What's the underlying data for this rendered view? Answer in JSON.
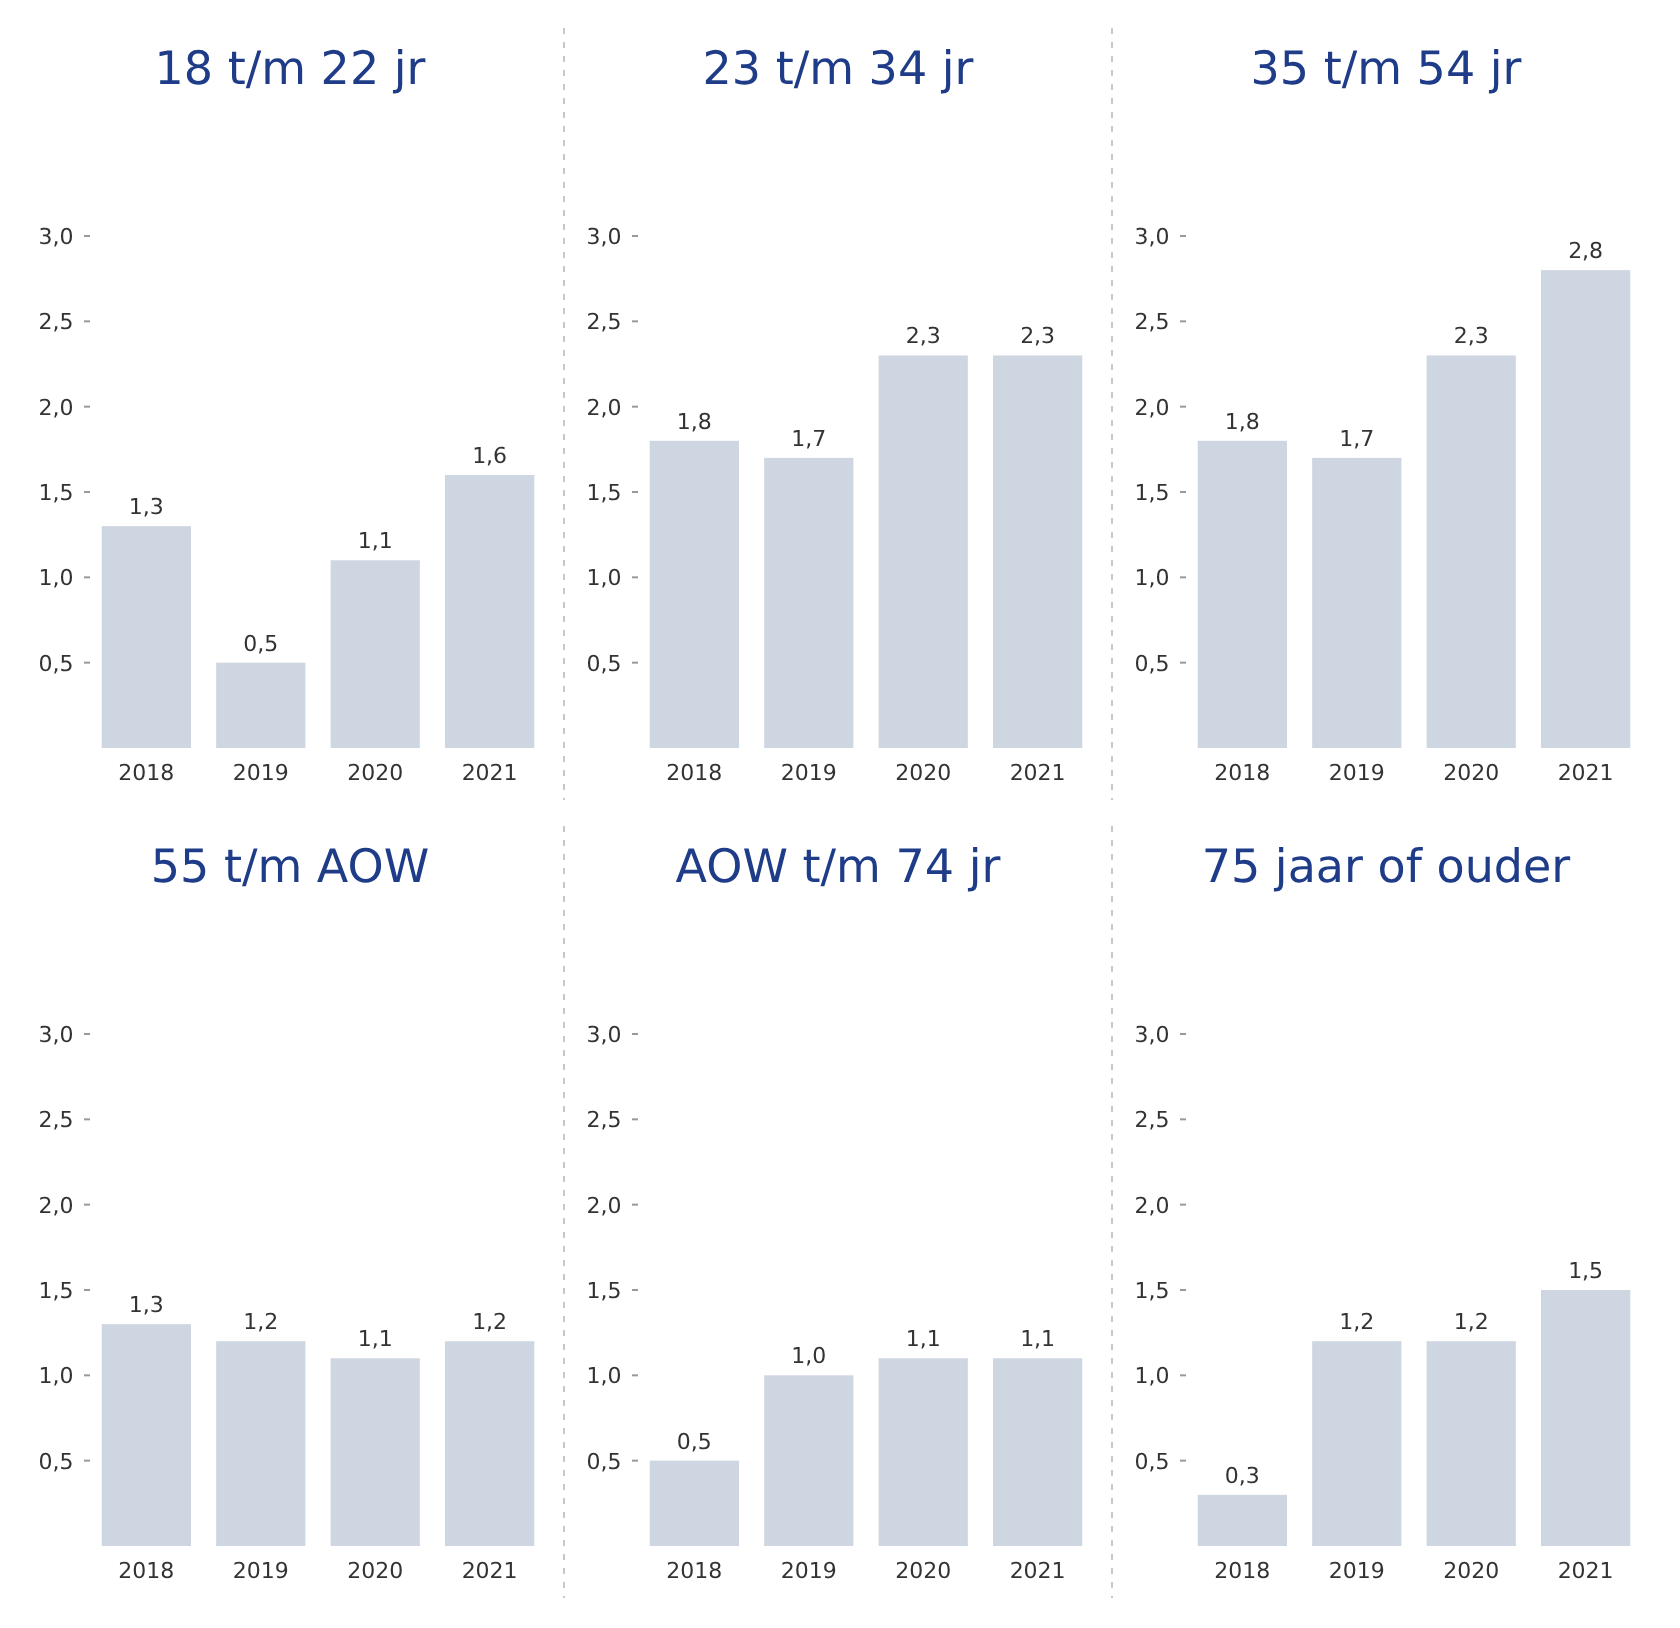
{
  "chart_data": [
    {
      "type": "bar",
      "title": "18 t/m 22 jr",
      "categories": [
        "2018",
        "2019",
        "2020",
        "2021"
      ],
      "values": [
        1.3,
        0.5,
        1.1,
        1.6
      ],
      "color": "#ced6e1",
      "ylim": [
        0,
        3.0
      ],
      "yticks": [
        {
          "value": 0.5,
          "label": "0,5"
        },
        {
          "value": 1.0,
          "label": "1,0"
        },
        {
          "value": 1.5,
          "label": "1,5"
        },
        {
          "value": 2.0,
          "label": "2,0"
        },
        {
          "value": 2.5,
          "label": "2,5"
        },
        {
          "value": 3.0,
          "label": "3,0"
        }
      ],
      "value_labels": [
        "1,3",
        "0,5",
        "1,1",
        "1,6"
      ]
    },
    {
      "type": "bar",
      "title": "23 t/m 34 jr",
      "categories": [
        "2018",
        "2019",
        "2020",
        "2021"
      ],
      "values": [
        1.8,
        1.7,
        2.3,
        2.3
      ],
      "color": "#ced6e1",
      "ylim": [
        0,
        3.0
      ],
      "yticks": [
        {
          "value": 0.5,
          "label": "0,5"
        },
        {
          "value": 1.0,
          "label": "1,0"
        },
        {
          "value": 1.5,
          "label": "1,5"
        },
        {
          "value": 2.0,
          "label": "2,0"
        },
        {
          "value": 2.5,
          "label": "2,5"
        },
        {
          "value": 3.0,
          "label": "3,0"
        }
      ],
      "value_labels": [
        "1,8",
        "1,7",
        "2,3",
        "2,3"
      ]
    },
    {
      "type": "bar",
      "title": "35 t/m 54 jr",
      "categories": [
        "2018",
        "2019",
        "2020",
        "2021"
      ],
      "values": [
        1.8,
        1.7,
        2.3,
        2.8
      ],
      "color": "#ced6e1",
      "ylim": [
        0,
        3.0
      ],
      "yticks": [
        {
          "value": 0.5,
          "label": "0,5"
        },
        {
          "value": 1.0,
          "label": "1,0"
        },
        {
          "value": 1.5,
          "label": "1,5"
        },
        {
          "value": 2.0,
          "label": "2,0"
        },
        {
          "value": 2.5,
          "label": "2,5"
        },
        {
          "value": 3.0,
          "label": "3,0"
        }
      ],
      "value_labels": [
        "1,8",
        "1,7",
        "2,3",
        "2,8"
      ]
    },
    {
      "type": "bar",
      "title": "55 t/m AOW",
      "categories": [
        "2018",
        "2019",
        "2020",
        "2021"
      ],
      "values": [
        1.3,
        1.2,
        1.1,
        1.2
      ],
      "color": "#ced6e1",
      "ylim": [
        0,
        3.0
      ],
      "yticks": [
        {
          "value": 0.5,
          "label": "0,5"
        },
        {
          "value": 1.0,
          "label": "1,0"
        },
        {
          "value": 1.5,
          "label": "1,5"
        },
        {
          "value": 2.0,
          "label": "2,0"
        },
        {
          "value": 2.5,
          "label": "2,5"
        },
        {
          "value": 3.0,
          "label": "3,0"
        }
      ],
      "value_labels": [
        "1,3",
        "1,2",
        "1,1",
        "1,2"
      ]
    },
    {
      "type": "bar",
      "title": "AOW t/m 74 jr",
      "categories": [
        "2018",
        "2019",
        "2020",
        "2021"
      ],
      "values": [
        0.5,
        1.0,
        1.1,
        1.1
      ],
      "color": "#ced6e1",
      "ylim": [
        0,
        3.0
      ],
      "yticks": [
        {
          "value": 0.5,
          "label": "0,5"
        },
        {
          "value": 1.0,
          "label": "1,0"
        },
        {
          "value": 1.5,
          "label": "1,5"
        },
        {
          "value": 2.0,
          "label": "2,0"
        },
        {
          "value": 2.5,
          "label": "2,5"
        },
        {
          "value": 3.0,
          "label": "3,0"
        }
      ],
      "value_labels": [
        "0,5",
        "1,0",
        "1,1",
        "1,1"
      ]
    },
    {
      "type": "bar",
      "title": "75 jaar of ouder",
      "categories": [
        "2018",
        "2019",
        "2020",
        "2021"
      ],
      "values": [
        0.3,
        1.2,
        1.2,
        1.5
      ],
      "color": "#ced6e1",
      "ylim": [
        0,
        3.0
      ],
      "yticks": [
        {
          "value": 0.5,
          "label": "0,5"
        },
        {
          "value": 1.0,
          "label": "1,0"
        },
        {
          "value": 1.5,
          "label": "1,5"
        },
        {
          "value": 2.0,
          "label": "2,0"
        },
        {
          "value": 2.5,
          "label": "2,5"
        },
        {
          "value": 3.0,
          "label": "3,0"
        }
      ],
      "value_labels": [
        "0,3",
        "1,2",
        "1,2",
        "1,5"
      ]
    }
  ]
}
